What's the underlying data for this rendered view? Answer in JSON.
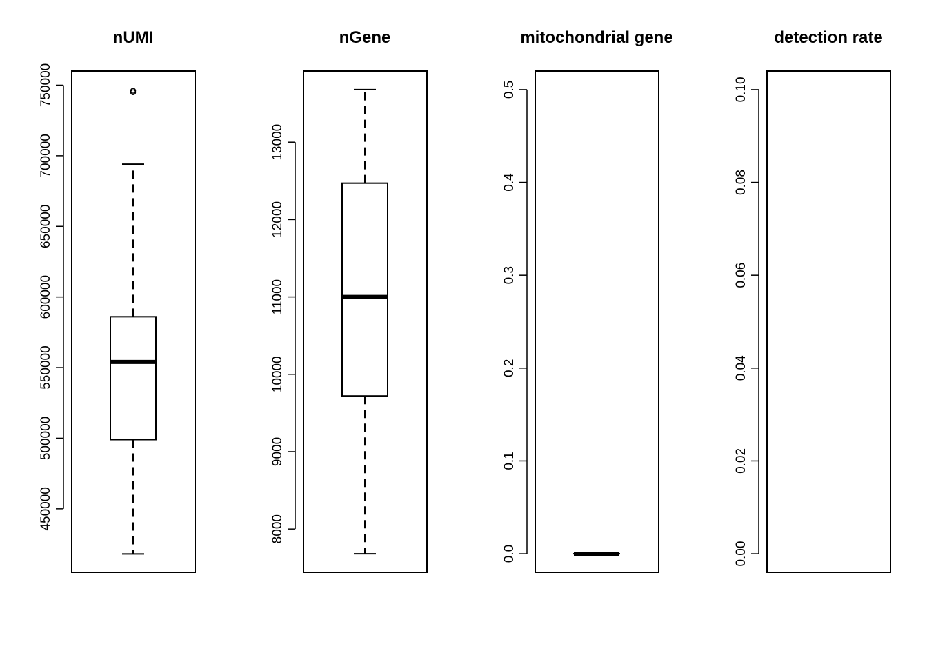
{
  "chart_data": [
    {
      "type": "box",
      "title": "nUMI",
      "ylim": [
        405000,
        760000
      ],
      "yticks": [
        450000,
        500000,
        550000,
        600000,
        650000,
        700000,
        750000
      ],
      "ytick_labels": [
        "450000",
        "500000",
        "550000",
        "600000",
        "650000",
        "700000",
        "750000"
      ],
      "stats": {
        "whisker_low": 418000,
        "q1": 499000,
        "median": 554000,
        "q3": 586000,
        "whisker_high": 694000
      },
      "outliers": [
        745000,
        746000
      ]
    },
    {
      "type": "box",
      "title": "nGene",
      "ylim": [
        7440,
        13920
      ],
      "yticks": [
        8000,
        9000,
        10000,
        11000,
        12000,
        13000
      ],
      "ytick_labels": [
        "8000",
        "9000",
        "10000",
        "11000",
        "12000",
        "13000"
      ],
      "stats": {
        "whisker_low": 7680,
        "q1": 9720,
        "median": 11000,
        "q3": 12470,
        "whisker_high": 13680
      },
      "outliers": []
    },
    {
      "type": "box",
      "title": "mitochondrial gene",
      "ylim": [
        -0.02,
        0.52
      ],
      "yticks": [
        0.0,
        0.1,
        0.2,
        0.3,
        0.4,
        0.5
      ],
      "ytick_labels": [
        "0.0",
        "0.1",
        "0.2",
        "0.3",
        "0.4",
        "0.5"
      ],
      "stats": {
        "whisker_low": 0,
        "q1": 0,
        "median": 0,
        "q3": 0,
        "whisker_high": 0
      },
      "outliers": []
    },
    {
      "type": "box",
      "title": "detection rate",
      "ylim": [
        -0.004,
        0.104
      ],
      "yticks": [
        0.0,
        0.02,
        0.04,
        0.06,
        0.08,
        0.1
      ],
      "ytick_labels": [
        "0.00",
        "0.02",
        "0.04",
        "0.06",
        "0.08",
        "0.10"
      ],
      "stats": null,
      "outliers": []
    }
  ]
}
